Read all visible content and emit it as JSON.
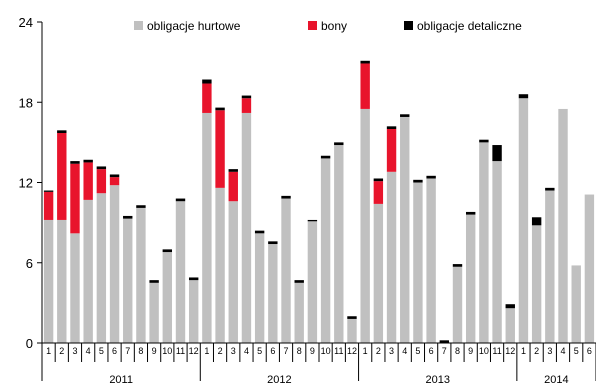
{
  "chart_data": {
    "type": "bar",
    "stacked": true,
    "ylim": [
      0,
      24
    ],
    "yticks": [
      0,
      6,
      12,
      18,
      24
    ],
    "grid": false,
    "legend_position": "top",
    "colors": {
      "hurtowe": "#c0c0c0",
      "bony": "#e8142c",
      "detaliczne": "#000000"
    },
    "series_names": [
      "obligacje hurtowe",
      "bony",
      "obligacje detaliczne"
    ],
    "years": [
      {
        "label": "2011",
        "start": 0,
        "count": 12
      },
      {
        "label": "2012",
        "start": 12,
        "count": 12
      },
      {
        "label": "2013",
        "start": 24,
        "count": 12
      },
      {
        "label": "2014",
        "start": 36,
        "count": 6
      }
    ],
    "months": [
      "1",
      "2",
      "3",
      "4",
      "5",
      "6",
      "7",
      "8",
      "9",
      "10",
      "11",
      "12",
      "1",
      "2",
      "3",
      "4",
      "5",
      "6",
      "7",
      "8",
      "9",
      "10",
      "11",
      "12",
      "1",
      "2",
      "3",
      "4",
      "5",
      "6",
      "7",
      "8",
      "9",
      "10",
      "11",
      "12",
      "1",
      "2",
      "3",
      "4",
      "5",
      "6"
    ],
    "hurtowe": [
      9.2,
      9.2,
      8.2,
      10.7,
      11.2,
      11.8,
      9.3,
      10.1,
      4.5,
      6.8,
      10.6,
      4.7,
      17.2,
      11.6,
      10.6,
      17.2,
      8.2,
      7.4,
      10.8,
      4.5,
      9.1,
      13.8,
      14.8,
      1.8,
      17.5,
      10.4,
      12.8,
      16.9,
      12.0,
      12.3,
      0.0,
      5.7,
      9.6,
      15.0,
      13.6,
      2.6,
      18.3,
      8.8,
      11.4,
      17.5,
      5.8,
      11.1
    ],
    "bony": [
      2.1,
      6.5,
      5.2,
      2.8,
      1.8,
      0.6,
      0.0,
      0.0,
      0.0,
      0.0,
      0.0,
      0.0,
      2.2,
      5.8,
      2.2,
      1.1,
      0.0,
      0.0,
      0.0,
      0.0,
      0.0,
      0.0,
      0.0,
      0.0,
      3.4,
      1.7,
      3.2,
      0.0,
      0.0,
      0.0,
      0.0,
      0.0,
      0.0,
      0.0,
      0.0,
      0.0,
      0.0,
      0.0,
      0.0,
      0.0,
      0.0,
      0.0
    ],
    "detaliczne": [
      0.1,
      0.2,
      0.2,
      0.2,
      0.2,
      0.2,
      0.2,
      0.2,
      0.2,
      0.2,
      0.2,
      0.2,
      0.3,
      0.2,
      0.2,
      0.2,
      0.2,
      0.2,
      0.2,
      0.2,
      0.1,
      0.2,
      0.2,
      0.2,
      0.2,
      0.2,
      0.2,
      0.2,
      0.2,
      0.2,
      0.2,
      0.2,
      0.2,
      0.2,
      1.2,
      0.3,
      0.3,
      0.6,
      0.2,
      0.0,
      0.0,
      0.0
    ]
  }
}
